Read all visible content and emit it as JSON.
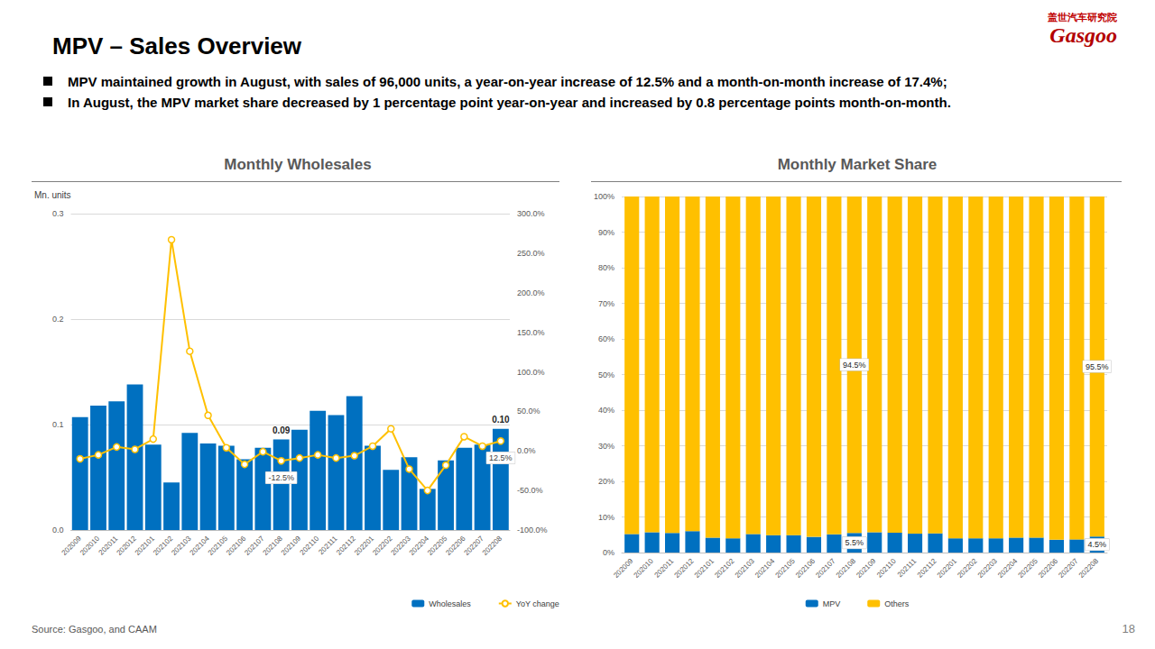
{
  "page": {
    "title": "MPV – Sales Overview",
    "bullets": [
      "MPV maintained growth in August, with sales of 96,000 units, a year-on-year increase of 12.5% and a month-on-month increase of 17.4%;",
      "In August, the MPV market share decreased by 1 percentage point year-on-year and increased by 0.8 percentage points month-on-month."
    ],
    "logo": [
      "盖世汽车研究院",
      "Gasgoo"
    ],
    "source": "Source: Gasgoo, and CAAM",
    "page_number": "18"
  },
  "chart_data": [
    {
      "type": "bar",
      "title": "Monthly Wholesales",
      "y_label": "Mn. units",
      "categories": [
        "202009",
        "202010",
        "202011",
        "202012",
        "202101",
        "202102",
        "202103",
        "202104",
        "202105",
        "202106",
        "202107",
        "202108",
        "202109",
        "202110",
        "202111",
        "202112",
        "202201",
        "202202",
        "202203",
        "202204",
        "202205",
        "202206",
        "202207",
        "202208"
      ],
      "series": [
        {
          "name": "Wholesales",
          "type": "bar",
          "color": "#0070C0",
          "values": [
            0.107,
            0.118,
            0.122,
            0.138,
            0.081,
            0.045,
            0.092,
            0.082,
            0.08,
            0.067,
            0.078,
            0.086,
            0.095,
            0.113,
            0.109,
            0.127,
            0.08,
            0.057,
            0.069,
            0.039,
            0.066,
            0.078,
            0.081,
            0.096
          ],
          "value_labels": [
            null,
            null,
            null,
            null,
            null,
            null,
            null,
            null,
            null,
            null,
            null,
            "0.09",
            null,
            null,
            null,
            null,
            null,
            null,
            null,
            null,
            null,
            null,
            null,
            "0.10"
          ]
        },
        {
          "name": "YoY change",
          "type": "line",
          "axis": "y2",
          "color": "#FFC000",
          "marker": "circle",
          "values": [
            -10,
            -5,
            5,
            2,
            15,
            267,
            126,
            45,
            4,
            -17,
            -1,
            -12.5,
            -9,
            -5,
            -9,
            -6,
            6,
            28,
            -23,
            -50,
            -18,
            18,
            6,
            12.5
          ],
          "value_labels": [
            null,
            null,
            null,
            null,
            null,
            null,
            null,
            null,
            null,
            null,
            null,
            "-12.5%",
            null,
            null,
            null,
            null,
            null,
            null,
            null,
            null,
            null,
            null,
            null,
            "12.5%"
          ]
        }
      ],
      "ylim": [
        0,
        0.3
      ],
      "yticks": [
        {
          "value": 0,
          "label": "0.0"
        },
        0.1,
        0.2,
        0.3
      ],
      "y2lim": [
        -100,
        300
      ],
      "y2ticks": [
        {
          "value": -100,
          "label": "-100.0%"
        },
        {
          "value": -50,
          "label": "-50.0%"
        },
        {
          "value": 0,
          "label": "0.0%"
        },
        {
          "value": 50,
          "label": "50.0%"
        },
        {
          "value": 100,
          "label": "100.0%"
        },
        {
          "value": 150,
          "label": "150.0%"
        },
        {
          "value": 200,
          "label": "200.0%"
        },
        {
          "value": 250,
          "label": "250.0%"
        },
        {
          "value": 300,
          "label": "300.0%"
        }
      ],
      "grid": true,
      "legend": "bottom"
    },
    {
      "type": "bar",
      "title": "Monthly Market Share",
      "stacked": true,
      "categories": [
        "202009",
        "202010",
        "202011",
        "202012",
        "202101",
        "202102",
        "202103",
        "202104",
        "202105",
        "202106",
        "202107",
        "202108",
        "202109",
        "202110",
        "202111",
        "202112",
        "202201",
        "202202",
        "202203",
        "202204",
        "202205",
        "202206",
        "202207",
        "202208"
      ],
      "series": [
        {
          "name": "MPV",
          "color": "#0070C0",
          "values": [
            5.2,
            5.7,
            5.5,
            6.0,
            4.2,
            4.0,
            5.2,
            4.9,
            4.9,
            4.4,
            5.1,
            5.5,
            5.7,
            5.6,
            5.3,
            5.4,
            4.0,
            4.0,
            4.0,
            4.2,
            4.2,
            3.6,
            3.7,
            4.5
          ],
          "value_labels": [
            null,
            null,
            null,
            null,
            null,
            null,
            null,
            null,
            null,
            null,
            null,
            "5.5%",
            null,
            null,
            null,
            null,
            null,
            null,
            null,
            null,
            null,
            null,
            null,
            "4.5%"
          ]
        },
        {
          "name": "Others",
          "color": "#FFC000",
          "values": [
            94.8,
            94.3,
            94.5,
            94.0,
            95.8,
            96.0,
            94.8,
            95.1,
            95.1,
            95.6,
            94.9,
            94.5,
            94.3,
            94.4,
            94.7,
            94.6,
            96.0,
            96.0,
            96.0,
            95.8,
            95.8,
            96.4,
            96.3,
            95.5
          ],
          "value_labels": [
            null,
            null,
            null,
            null,
            null,
            null,
            null,
            null,
            null,
            null,
            null,
            "94.5%",
            null,
            null,
            null,
            null,
            null,
            null,
            null,
            null,
            null,
            null,
            null,
            "95.5%"
          ]
        }
      ],
      "ylim": [
        0,
        100
      ],
      "yticks": [
        {
          "value": 0,
          "label": "0%"
        },
        {
          "value": 10,
          "label": "10%"
        },
        {
          "value": 20,
          "label": "20%"
        },
        {
          "value": 30,
          "label": "30%"
        },
        {
          "value": 40,
          "label": "40%"
        },
        {
          "value": 50,
          "label": "50%"
        },
        {
          "value": 60,
          "label": "60%"
        },
        {
          "value": 70,
          "label": "70%"
        },
        {
          "value": 80,
          "label": "80%"
        },
        {
          "value": 90,
          "label": "90%"
        },
        {
          "value": 100,
          "label": "100%"
        }
      ],
      "grid": true,
      "legend": "bottom"
    }
  ]
}
